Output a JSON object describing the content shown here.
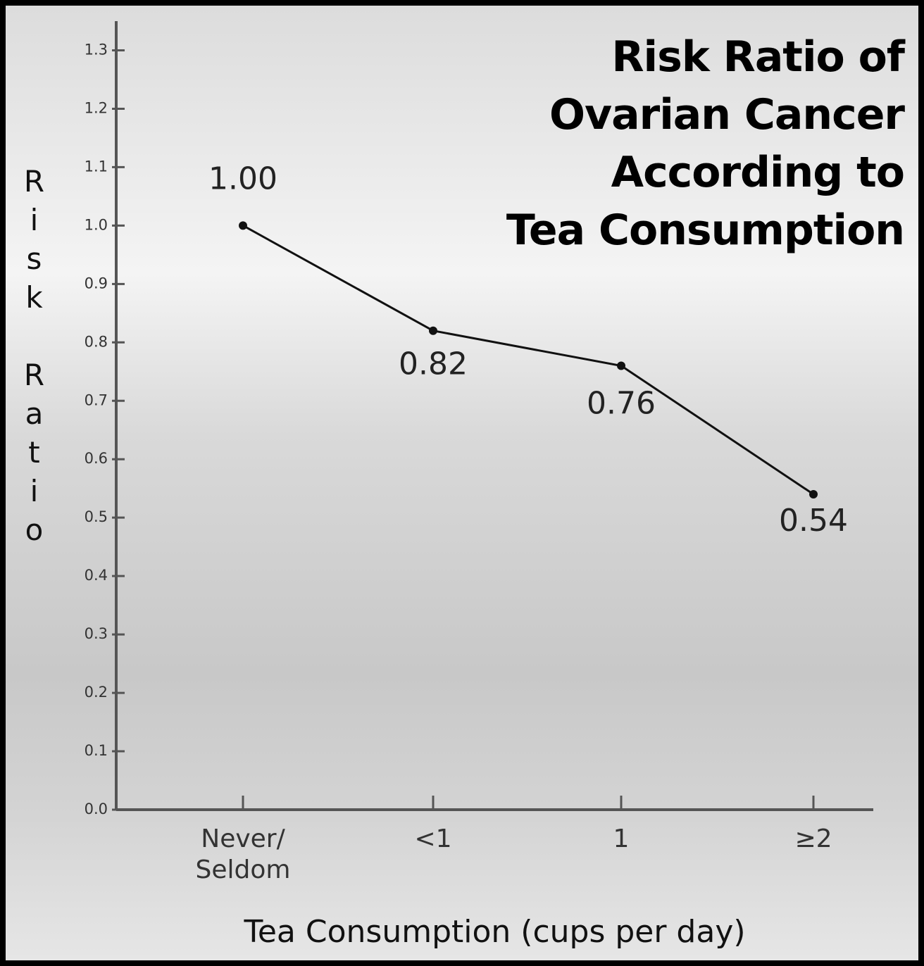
{
  "chart_data": {
    "type": "line",
    "title": "Risk Ratio of\nOvarian Cancer\nAccording to\nTea Consumption",
    "x_label": "Tea Consumption (cups per day)",
    "y_label": "Risk Ratio",
    "categories": [
      "Never/ Seldom",
      "<1",
      "1",
      "≥2"
    ],
    "values": [
      1.0,
      0.82,
      0.76,
      0.54
    ],
    "value_labels": [
      "1.00",
      "0.82",
      "0.76",
      "0.54"
    ],
    "color": "#111111",
    "ylim": [
      0,
      1.35
    ],
    "yticks": [
      {
        "value": 0,
        "label": "0.0"
      },
      0.1,
      0.2,
      0.3,
      0.4,
      0.5,
      0.6,
      0.7,
      0.8,
      0.9,
      {
        "value": 1,
        "label": "1.0"
      },
      1.1,
      1.2,
      1.3
    ]
  }
}
